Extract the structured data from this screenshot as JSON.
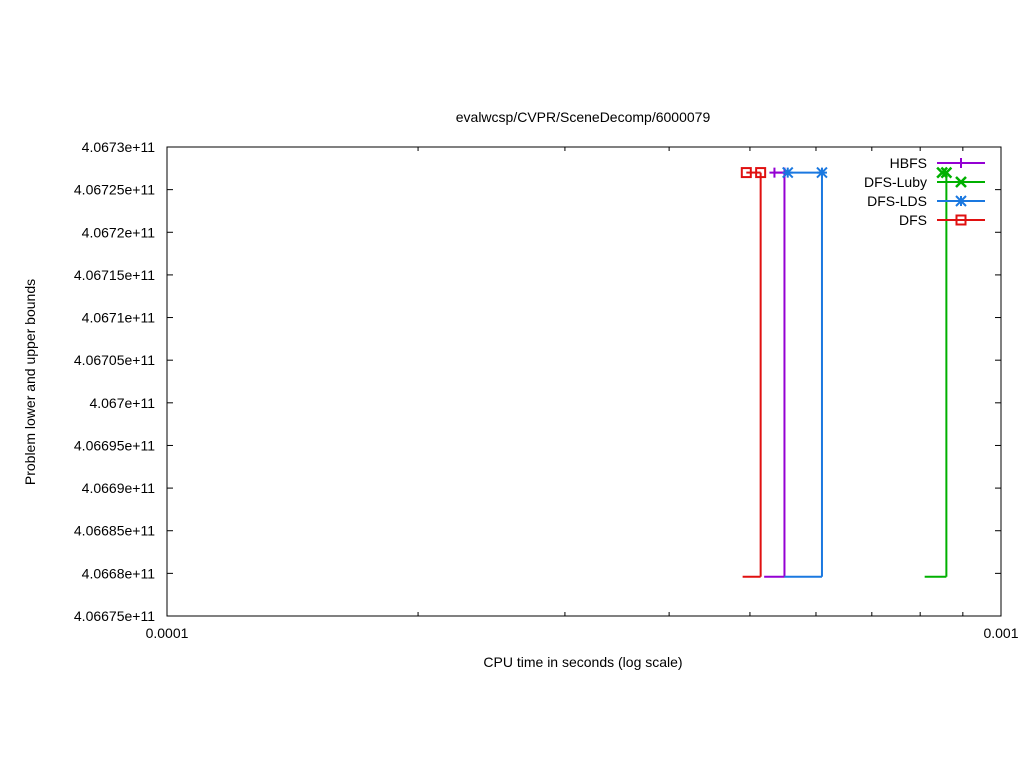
{
  "chart_data": {
    "type": "line",
    "title": "evalwcsp/CVPR/SceneDecomp/6000079",
    "xlabel": "CPU time in seconds (log scale)",
    "ylabel": "Problem lower and upper bounds",
    "x_scale": "log",
    "xlim": [
      0.0001,
      0.001
    ],
    "ylim": [
      406675000000,
      406730000000
    ],
    "x_ticks": [
      {
        "value": 0.0001,
        "label": "0.0001"
      },
      {
        "value": 0.001,
        "label": "0.001"
      }
    ],
    "y_ticks": [
      {
        "value": 406675000000,
        "label": "4.06675e+11"
      },
      {
        "value": 406680000000,
        "label": "4.0668e+11"
      },
      {
        "value": 406685000000,
        "label": "4.06685e+11"
      },
      {
        "value": 406690000000,
        "label": "4.0669e+11"
      },
      {
        "value": 406695000000,
        "label": "4.06695e+11"
      },
      {
        "value": 406700000000,
        "label": "4.067e+11"
      },
      {
        "value": 406705000000,
        "label": "4.06705e+11"
      },
      {
        "value": 406710000000,
        "label": "4.0671e+11"
      },
      {
        "value": 406715000000,
        "label": "4.06715e+11"
      },
      {
        "value": 406720000000,
        "label": "4.0672e+11"
      },
      {
        "value": 406725000000,
        "label": "4.06725e+11"
      },
      {
        "value": 406730000000,
        "label": "4.0673e+11"
      }
    ],
    "legend_position": "top-right",
    "grid": false,
    "series": [
      {
        "name": "HBFS",
        "color": "#9400d3",
        "marker": "plus",
        "upper": [
          [
            0.000535,
            406727000000
          ],
          [
            0.00055,
            406727000000
          ]
        ],
        "lower": [
          [
            0.00052,
            406679600000
          ],
          [
            0.00055,
            406679600000
          ]
        ],
        "step_x": 0.00055
      },
      {
        "name": "DFS-Luby",
        "color": "#00b000",
        "marker": "x",
        "upper": [
          [
            0.00085,
            406727000000
          ],
          [
            0.00086,
            406727000000
          ]
        ],
        "lower": [
          [
            0.00081,
            406679600000
          ],
          [
            0.00086,
            406679600000
          ]
        ],
        "step_x": 0.00086
      },
      {
        "name": "DFS-LDS",
        "color": "#1a78e0",
        "marker": "star",
        "upper": [
          [
            0.000555,
            406727000000
          ],
          [
            0.00061,
            406727000000
          ]
        ],
        "lower": [
          [
            0.00055,
            406679600000
          ],
          [
            0.00061,
            406679600000
          ]
        ],
        "step_x": 0.00061
      },
      {
        "name": "DFS",
        "color": "#e01010",
        "marker": "square",
        "upper": [
          [
            0.000495,
            406727000000
          ],
          [
            0.000515,
            406727000000
          ]
        ],
        "lower": [
          [
            0.00049,
            406679600000
          ],
          [
            0.000515,
            406679600000
          ]
        ],
        "step_x": 0.000515
      }
    ]
  }
}
